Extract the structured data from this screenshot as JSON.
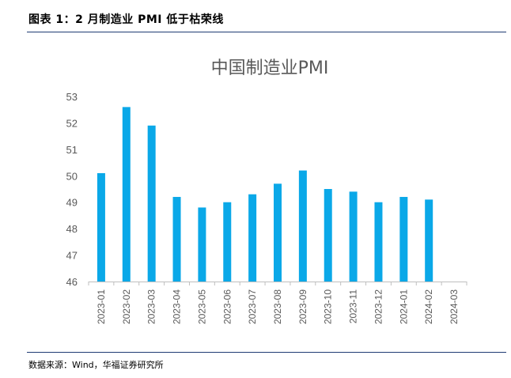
{
  "figure": {
    "title": "图表 1：2 月制造业 PMI 低于枯荣线",
    "source": "数据来源：Wind，华福证券研究所"
  },
  "colors": {
    "bar": "#0AA8E8",
    "rule": "#1F3B73",
    "axis": "#BFBFBF",
    "text": "#595959"
  },
  "chart_data": {
    "type": "bar",
    "title": "中国制造业PMI",
    "xlabel": "",
    "ylabel": "",
    "categories": [
      "2023-01",
      "2023-02",
      "2023-03",
      "2023-04",
      "2023-05",
      "2023-06",
      "2023-07",
      "2023-08",
      "2023-09",
      "2023-10",
      "2023-11",
      "2023-12",
      "2024-01",
      "2024-02",
      "2024-03"
    ],
    "values": [
      50.1,
      52.6,
      51.9,
      49.2,
      48.8,
      49.0,
      49.3,
      49.7,
      50.2,
      49.5,
      49.4,
      49.0,
      49.2,
      49.1,
      null
    ],
    "ylim": [
      46,
      53
    ],
    "yticks": [
      46,
      47,
      48,
      49,
      50,
      51,
      52,
      53
    ],
    "grid": false,
    "legend": "none"
  }
}
